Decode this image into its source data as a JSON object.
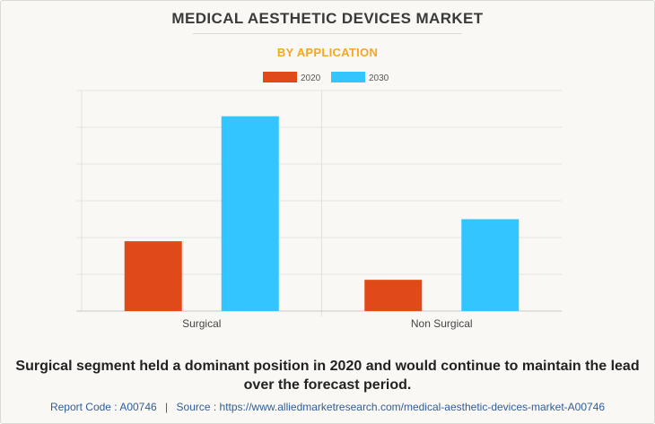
{
  "header": {
    "title": "MEDICAL AESTHETIC DEVICES MARKET",
    "subtitle": "BY APPLICATION"
  },
  "chart_data": {
    "type": "bar",
    "title": "MEDICAL AESTHETIC DEVICES MARKET",
    "subtitle": "BY APPLICATION",
    "categories": [
      "Surgical",
      "Non Surgical"
    ],
    "series": [
      {
        "name": "2020",
        "color": "#e04a18",
        "values": [
          1.9,
          0.85
        ]
      },
      {
        "name": "2030",
        "color": "#33c5ff",
        "values": [
          5.3,
          2.5
        ]
      }
    ],
    "ylim": [
      0,
      6
    ],
    "gridlines": 6,
    "legend_position": "top-center",
    "xlabel": "",
    "ylabel": ""
  },
  "caption": "Surgical segment held a dominant position in 2020 and would continue to maintain the lead over the forecast period.",
  "footer": {
    "report_code_label": "Report Code : A00746",
    "separator": "|",
    "source_label": "Source : https://www.alliedmarketresearch.com/medical-aesthetic-devices-market-A00746"
  }
}
